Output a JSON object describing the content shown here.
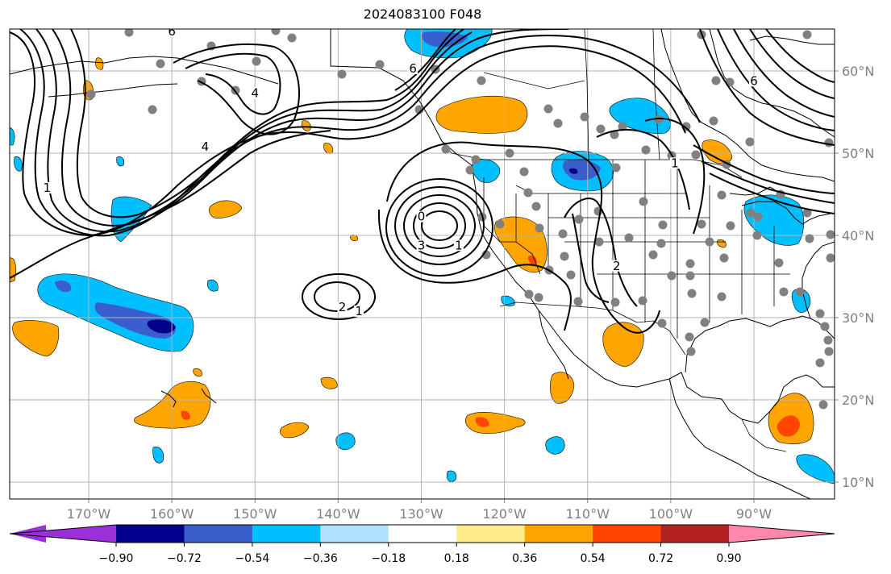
{
  "title": "2024083100 F048",
  "chart_data": {
    "type": "heatmap",
    "title": "2024083100 F048",
    "lon_ticks": [
      "170°W",
      "160°W",
      "150°W",
      "140°W",
      "130°W",
      "120°W",
      "110°W",
      "100°W",
      "90°W"
    ],
    "lat_ticks": [
      "60°N",
      "50°N",
      "40°N",
      "30°N",
      "20°N",
      "10°N"
    ],
    "lon_values": [
      -170,
      -160,
      -150,
      -140,
      -130,
      -120,
      -110,
      -100,
      -90
    ],
    "lat_values": [
      60,
      50,
      40,
      30,
      20,
      10
    ],
    "colorbar": {
      "ticks": [
        "−0.90",
        "−0.72",
        "−0.54",
        "−0.36",
        "−0.18",
        "0.18",
        "0.36",
        "0.54",
        "0.72",
        "0.90"
      ],
      "bins": [
        {
          "from": null,
          "to": -0.9,
          "color": "#9b30d9"
        },
        {
          "from": -0.9,
          "to": -0.72,
          "color": "#00008b"
        },
        {
          "from": -0.72,
          "to": -0.54,
          "color": "#3a5fcd"
        },
        {
          "from": -0.54,
          "to": -0.36,
          "color": "#00bfff"
        },
        {
          "from": -0.36,
          "to": -0.18,
          "color": "#b0e2ff"
        },
        {
          "from": -0.18,
          "to": 0.18,
          "color": "#ffffff"
        },
        {
          "from": 0.18,
          "to": 0.36,
          "color": "#ffec8b"
        },
        {
          "from": 0.36,
          "to": 0.54,
          "color": "#ffa500"
        },
        {
          "from": 0.54,
          "to": 0.72,
          "color": "#ff4500"
        },
        {
          "from": 0.72,
          "to": 0.9,
          "color": "#b22222"
        },
        {
          "from": 0.9,
          "to": null,
          "color": "#ff88aa"
        }
      ]
    },
    "contour_labels": [
      {
        "text": "6",
        "lon": -160,
        "lat": 64.5
      },
      {
        "text": "4",
        "lon": -150,
        "lat": 57
      },
      {
        "text": "4",
        "lon": -156,
        "lat": 50.5
      },
      {
        "text": "2",
        "lon": -139.5,
        "lat": 31
      },
      {
        "text": "1",
        "lon": -137.5,
        "lat": 30.5
      },
      {
        "text": "6",
        "lon": -131,
        "lat": 60
      },
      {
        "text": "0",
        "lon": -130,
        "lat": 42
      },
      {
        "text": "3",
        "lon": -130,
        "lat": 38.5
      },
      {
        "text": "1",
        "lon": -125.5,
        "lat": 38.5
      },
      {
        "text": "2",
        "lon": -106.5,
        "lat": 36
      },
      {
        "text": "1",
        "lon": -99.5,
        "lat": 48.5
      },
      {
        "text": "6",
        "lon": -90,
        "lat": 58.5
      },
      {
        "text": "1",
        "lon": -175,
        "lat": 45.5
      }
    ]
  }
}
